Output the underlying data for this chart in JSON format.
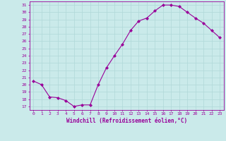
{
  "x": [
    0,
    1,
    2,
    3,
    4,
    5,
    6,
    7,
    8,
    9,
    10,
    11,
    12,
    13,
    14,
    15,
    16,
    17,
    18,
    19,
    20,
    21,
    22,
    23
  ],
  "y": [
    20.5,
    20.0,
    18.3,
    18.2,
    17.8,
    17.0,
    17.2,
    17.2,
    20.0,
    22.3,
    24.0,
    25.6,
    27.5,
    28.8,
    29.2,
    30.2,
    31.0,
    31.0,
    30.8,
    30.0,
    29.2,
    28.5,
    27.5,
    26.5
  ],
  "line_color": "#990099",
  "marker": "D",
  "marker_size": 2,
  "xlabel": "Windchill (Refroidissement éolien,°C)",
  "ylabel_ticks": [
    17,
    18,
    19,
    20,
    21,
    22,
    23,
    24,
    25,
    26,
    27,
    28,
    29,
    30,
    31
  ],
  "ylim": [
    16.5,
    31.5
  ],
  "xlim": [
    -0.5,
    23.5
  ],
  "bg_color": "#caeaea",
  "grid_color": "#b0d8d8",
  "xlabel_color": "#990099",
  "tick_color": "#990099",
  "tick_fontsize": 4.5,
  "xlabel_fontsize": 5.5,
  "linewidth": 0.8
}
